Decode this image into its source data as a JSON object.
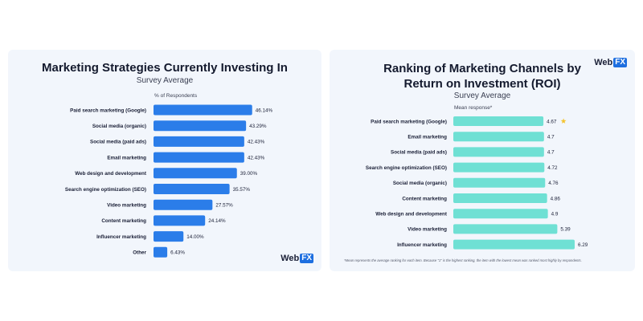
{
  "colors": {
    "left_bar": "#2b7de9",
    "right_bar": "#6fe0d4",
    "star": "#f4c430",
    "panel_bg": "#f2f6fc"
  },
  "logo": {
    "left_part": "Web",
    "right_part": "FX"
  },
  "chart_data": [
    {
      "type": "bar",
      "orientation": "horizontal",
      "title": "Marketing Strategies Currently Investing In",
      "subtitle": "Survey Average",
      "xlabel": "% of Respondents",
      "categories": [
        "Paid search marketing (Google)",
        "Social media (organic)",
        "Social media (paid ads)",
        "Email marketing",
        "Web design and development",
        "Search engine optimization (SEO)",
        "Video marketing",
        "Content marketing",
        "Influencer marketing",
        "Other"
      ],
      "values": [
        46.14,
        43.29,
        42.43,
        42.43,
        39.0,
        35.57,
        27.57,
        24.14,
        14.0,
        6.43
      ],
      "value_labels": [
        "46.14%",
        "43.29%",
        "42.43%",
        "42.43%",
        "39.00%",
        "35.57%",
        "27.57%",
        "24.14%",
        "14.00%",
        "6.43%"
      ],
      "xlim": [
        0,
        50
      ],
      "grid": false
    },
    {
      "type": "bar",
      "orientation": "horizontal",
      "title_line1": "Ranking of Marketing Channels by",
      "title_line2": "Return on Investment (ROI)",
      "subtitle": "Survey Average",
      "xlabel": "Mean response*",
      "categories": [
        "Paid search marketing (Google)",
        "Email marketing",
        "Social media (paid ads)",
        "Search engine optimization (SEO)",
        "Social media (organic)",
        "Content marketing",
        "Web design and development",
        "Video marketing",
        "Influencer marketing"
      ],
      "values": [
        4.67,
        4.7,
        4.7,
        4.72,
        4.76,
        4.86,
        4.9,
        5.39,
        6.29
      ],
      "value_labels": [
        "4.67",
        "4.7",
        "4.7",
        "4.72",
        "4.76",
        "4.86",
        "4.9",
        "5.39",
        "6.29"
      ],
      "highlight_index": 0,
      "xlim": [
        0,
        6.29
      ],
      "grid": false,
      "footnote": "*Mean represents the average ranking for each item. Because \"1\" is the highest ranking, the item with the lowest mean was ranked most highly by respondents."
    }
  ]
}
